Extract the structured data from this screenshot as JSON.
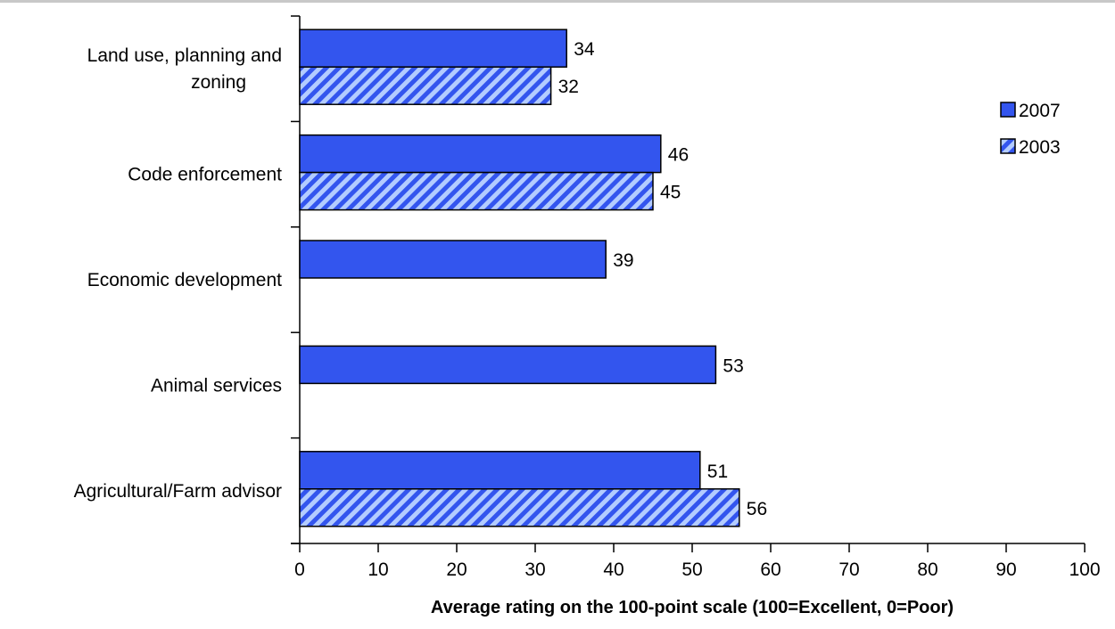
{
  "chart_data": {
    "type": "bar",
    "orientation": "horizontal",
    "categories": [
      [
        "Land use, planning and",
        "zoning"
      ],
      [
        "Code enforcement"
      ],
      [
        "Economic development"
      ],
      [
        "Animal services"
      ],
      [
        "Agricultural/Farm advisor"
      ]
    ],
    "series": [
      {
        "name": "2007",
        "values": [
          34,
          46,
          39,
          53,
          51
        ],
        "color": "#3355ee",
        "pattern": "solid"
      },
      {
        "name": "2003",
        "values": [
          32,
          45,
          null,
          null,
          56
        ],
        "color": "#3355ee",
        "pattern": "diagonal-hatch"
      }
    ],
    "xlabel": "Average rating on the 100-point scale (100=Excellent, 0=Poor)",
    "xlim": [
      0,
      100
    ],
    "xticks": [
      0,
      10,
      20,
      30,
      40,
      50,
      60,
      70,
      80,
      90,
      100
    ],
    "grid": false,
    "data_labels": true,
    "legend_position": "right"
  }
}
